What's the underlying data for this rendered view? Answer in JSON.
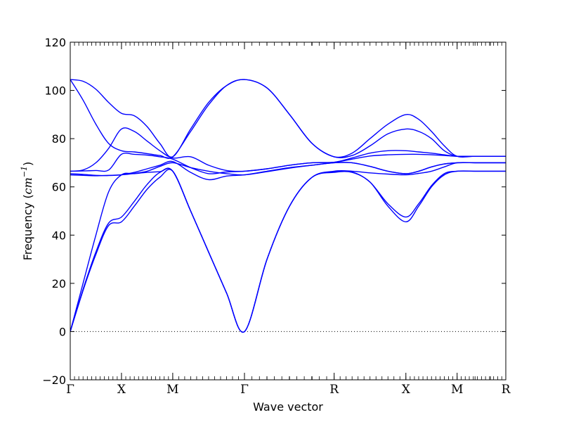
{
  "chart_data": {
    "type": "line",
    "xlabel": "Wave vector",
    "ylabel": "Frequency (",
    "ylabel_unit_base": "cm",
    "ylabel_unit_exp": "−1",
    "ylabel_close": ")",
    "ylim": [
      -20,
      120
    ],
    "yticks": [
      -20,
      0,
      20,
      40,
      60,
      80,
      100,
      120
    ],
    "xlim": [
      0,
      8.5
    ],
    "high_symmetry_points": [
      {
        "label": "Γ",
        "x": 0
      },
      {
        "label": "X",
        "x": 1.0
      },
      {
        "label": "M",
        "x": 2.0
      },
      {
        "label": "Γ",
        "x": 3.4
      },
      {
        "label": "R",
        "x": 5.15
      },
      {
        "label": "X",
        "x": 6.55
      },
      {
        "label": "M",
        "x": 7.55
      },
      {
        "label": "R",
        "x": 8.5
      }
    ],
    "zero_line": 0,
    "grid": false,
    "line_color": "#0000ff",
    "series": [
      {
        "x": [
          0,
          0.25,
          0.5,
          0.75,
          1.0,
          1.25,
          1.5,
          1.75,
          2.0,
          2.35,
          2.7,
          3.05,
          3.4,
          3.84,
          4.28,
          4.72,
          5.15,
          5.5,
          5.85,
          6.2,
          6.55,
          6.8,
          7.05,
          7.3,
          7.55,
          7.9,
          8.2,
          8.5
        ],
        "y": [
          0,
          17,
          32,
          44,
          45.5,
          52,
          59,
          64,
          66.5,
          50,
          33,
          16,
          0,
          30,
          52,
          64,
          66,
          66,
          62,
          52,
          45.5,
          52,
          60,
          65,
          66.5,
          66.5,
          66.5,
          66.5
        ]
      },
      {
        "x": [
          0,
          0.25,
          0.5,
          0.75,
          1.0,
          1.25,
          1.5,
          1.75,
          2.0,
          2.35,
          2.7,
          3.05,
          3.4,
          3.84,
          4.28,
          4.72,
          5.15,
          5.5,
          5.85,
          6.2,
          6.55,
          6.8,
          7.05,
          7.3,
          7.55,
          7.9,
          8.2,
          8.5
        ],
        "y": [
          0,
          17.5,
          33,
          45,
          47.5,
          54,
          61,
          66,
          66.5,
          50,
          33,
          16,
          0,
          30,
          52,
          64,
          66.2,
          66.2,
          62,
          53,
          47.5,
          53,
          60.5,
          65.5,
          66.5,
          66.5,
          66.5,
          66.5
        ]
      },
      {
        "x": [
          0,
          0.25,
          0.5,
          0.75,
          1.0,
          1.25,
          1.5,
          1.75,
          2.0,
          2.35,
          2.7,
          3.05,
          3.4,
          3.84,
          4.28,
          4.72,
          5.15,
          5.5,
          5.85,
          6.2,
          6.55,
          6.8,
          7.05,
          7.3,
          7.55,
          7.9,
          8.2,
          8.5
        ],
        "y": [
          0,
          20,
          40,
          58,
          65,
          65.5,
          66,
          66.3,
          66.5,
          50,
          33,
          16,
          0,
          30,
          52,
          64,
          66.5,
          66.5,
          65.8,
          65.3,
          65,
          65.6,
          66.5,
          68.3,
          70,
          70,
          70,
          70
        ]
      },
      {
        "x": [
          0,
          0.25,
          0.5,
          0.75,
          1.0,
          1.25,
          1.5,
          1.75,
          2.0,
          2.35,
          2.7,
          3.05,
          3.4,
          3.84,
          4.28,
          4.72,
          5.15,
          5.5,
          5.85,
          6.2,
          6.55,
          6.8,
          7.05,
          7.3,
          7.55,
          7.9,
          8.2,
          8.5
        ],
        "y": [
          65,
          64.8,
          64.6,
          64.8,
          65,
          65.6,
          66.5,
          68.5,
          70,
          68,
          66.5,
          65.5,
          65,
          66.3,
          67.8,
          69,
          70,
          70,
          68.5,
          66.5,
          65.5,
          66.5,
          68.3,
          69.5,
          70,
          70,
          70,
          70
        ]
      },
      {
        "x": [
          0,
          0.25,
          0.5,
          0.75,
          1.0,
          1.25,
          1.5,
          1.75,
          2.0,
          2.35,
          2.7,
          3.05,
          3.4,
          3.84,
          4.28,
          4.72,
          5.15,
          5.5,
          5.85,
          6.2,
          6.55,
          6.8,
          7.05,
          7.3,
          7.55,
          7.9,
          8.2,
          8.5
        ],
        "y": [
          65.5,
          65.2,
          64.8,
          64.7,
          65,
          66,
          67.5,
          69,
          70.5,
          66,
          63,
          64.5,
          65,
          66.5,
          68,
          69,
          70,
          70,
          68.5,
          66.5,
          65.5,
          66.5,
          68.3,
          69.5,
          70,
          70,
          70,
          70
        ]
      },
      {
        "x": [
          0,
          0.25,
          0.5,
          0.75,
          1.0,
          1.25,
          1.5,
          1.75,
          2.0,
          2.35,
          2.7,
          3.05,
          3.4,
          3.84,
          4.28,
          4.72,
          5.15,
          5.5,
          5.85,
          6.2,
          6.55,
          6.8,
          7.05,
          7.3,
          7.55,
          7.9,
          8.2,
          8.5
        ],
        "y": [
          66.5,
          66.6,
          66.8,
          67,
          73.5,
          73.5,
          73.2,
          72.5,
          71.5,
          68,
          65.5,
          66.2,
          66.5,
          67.5,
          69,
          70,
          70.2,
          71.5,
          72.8,
          73.3,
          73.5,
          73.5,
          73.3,
          73,
          72.7,
          72.7,
          72.7,
          72.7
        ]
      },
      {
        "x": [
          0,
          0.25,
          0.5,
          0.75,
          1.0,
          1.25,
          1.5,
          1.75,
          2.0,
          2.35,
          2.7,
          3.05,
          3.4,
          3.84,
          4.28,
          4.72,
          5.15,
          5.5,
          5.85,
          6.2,
          6.55,
          6.8,
          7.05,
          7.3,
          7.55,
          7.9,
          8.2,
          8.5
        ],
        "y": [
          66.5,
          67,
          70,
          76,
          84,
          83,
          79,
          75,
          72,
          72.5,
          69,
          66.8,
          66.5,
          67.5,
          69,
          70,
          70.2,
          72,
          74,
          75,
          75,
          74.5,
          74,
          73.3,
          72.7,
          72.7,
          72.7,
          72.7
        ]
      },
      {
        "x": [
          0,
          0.25,
          0.5,
          0.75,
          1.0,
          1.25,
          1.5,
          1.75,
          2.0,
          2.35,
          2.7,
          3.05,
          3.4,
          3.84,
          4.28,
          4.72,
          5.15,
          5.5,
          5.85,
          6.2,
          6.55,
          6.8,
          7.05,
          7.3,
          7.55,
          7.9,
          8.2,
          8.5
        ],
        "y": [
          104.5,
          96,
          86,
          78,
          75,
          74.5,
          73.8,
          73,
          72.5,
          83,
          94,
          102,
          104.5,
          101,
          90,
          78,
          72.5,
          73,
          77,
          82,
          84,
          83,
          80,
          75,
          72.7,
          72.7,
          72.7,
          72.7
        ]
      },
      {
        "x": [
          0,
          0.25,
          0.5,
          0.75,
          1.0,
          1.25,
          1.5,
          1.75,
          2.0,
          2.35,
          2.7,
          3.05,
          3.4,
          3.84,
          4.28,
          4.72,
          5.15,
          5.5,
          5.85,
          6.2,
          6.55,
          6.8,
          7.05,
          7.3,
          7.55,
          7.9,
          8.2,
          8.5
        ],
        "y": [
          104.5,
          103.8,
          100.5,
          95,
          90.5,
          89.5,
          85,
          78,
          72.5,
          84,
          95,
          102,
          104.5,
          101,
          90,
          78,
          72.5,
          74,
          80,
          86,
          90,
          88,
          83,
          77,
          72.7,
          72.7,
          72.7,
          72.7
        ]
      }
    ]
  }
}
